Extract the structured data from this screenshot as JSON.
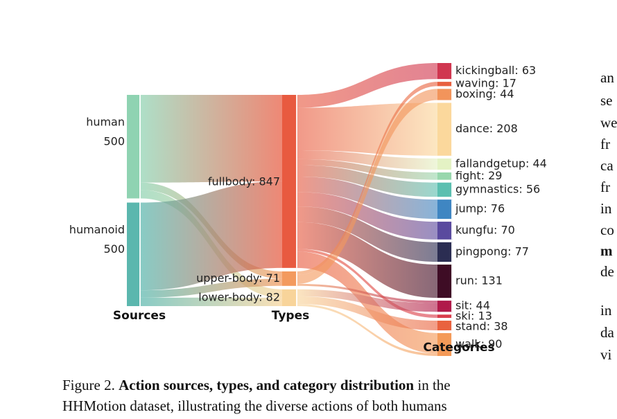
{
  "chart_data": {
    "type": "sankey",
    "column_labels": [
      "Sources",
      "Types",
      "Categories"
    ],
    "sources": [
      {
        "name": "human",
        "value": 500,
        "color": "#8fd3b2"
      },
      {
        "name": "humanoid",
        "value": 500,
        "color": "#5bb7ae"
      }
    ],
    "types": [
      {
        "name": "fullbody",
        "value": 847,
        "color": "#e85a40",
        "label": "fullbody: 847"
      },
      {
        "name": "upper-body",
        "value": 71,
        "color": "#f39a5e",
        "label": "upper-body: 71"
      },
      {
        "name": "lower-body",
        "value": 82,
        "color": "#f8d49a",
        "label": "lower-body: 82"
      }
    ],
    "categories": [
      {
        "name": "kickingball",
        "value": 63,
        "color": "#d03650",
        "label": "kickingball: 63"
      },
      {
        "name": "waving",
        "value": 17,
        "color": "#e8603f",
        "label": "waving: 17"
      },
      {
        "name": "boxing",
        "value": 44,
        "color": "#f2945b",
        "label": "boxing: 44"
      },
      {
        "name": "dance",
        "value": 208,
        "color": "#fbd89c",
        "label": "dance: 208"
      },
      {
        "name": "fallandgetup",
        "value": 44,
        "color": "#e4f2c4",
        "label": "fallandgetup: 44"
      },
      {
        "name": "fight",
        "value": 29,
        "color": "#98d7ad",
        "label": "fight: 29"
      },
      {
        "name": "gymnastics",
        "value": 56,
        "color": "#5bbfb0",
        "label": "gymnastics: 56"
      },
      {
        "name": "jump",
        "value": 76,
        "color": "#3f86c2",
        "label": "jump: 76"
      },
      {
        "name": "kungfu",
        "value": 70,
        "color": "#5a4a9e",
        "label": "kungfu: 70"
      },
      {
        "name": "pingpong",
        "value": 77,
        "color": "#2b2d52",
        "label": "pingpong: 77"
      },
      {
        "name": "run",
        "value": 131,
        "color": "#3e0c25",
        "label": "run: 131"
      },
      {
        "name": "sit",
        "value": 44,
        "color": "#b01a4a",
        "label": "sit: 44"
      },
      {
        "name": "ski",
        "value": 13,
        "color": "#d93d4c",
        "label": "ski: 13"
      },
      {
        "name": "stand",
        "value": 38,
        "color": "#e9623f",
        "label": "stand: 38"
      },
      {
        "name": "walk",
        "value": 90,
        "color": "#f49a58",
        "label": "walk: 90"
      }
    ],
    "flows_type_to_category": [
      {
        "type": "fullbody",
        "category": "kickingball",
        "value": 63
      },
      {
        "type": "fullbody",
        "category": "dance",
        "value": 208
      },
      {
        "type": "fullbody",
        "category": "fallandgetup",
        "value": 44
      },
      {
        "type": "fullbody",
        "category": "fight",
        "value": 29
      },
      {
        "type": "fullbody",
        "category": "gymnastics",
        "value": 56
      },
      {
        "type": "fullbody",
        "category": "jump",
        "value": 76
      },
      {
        "type": "fullbody",
        "category": "kungfu",
        "value": 70
      },
      {
        "type": "fullbody",
        "category": "pingpong",
        "value": 77
      },
      {
        "type": "fullbody",
        "category": "run",
        "value": 131
      },
      {
        "type": "fullbody",
        "category": "ski",
        "value": 13
      },
      {
        "type": "fullbody",
        "category": "walk",
        "value": 80
      },
      {
        "type": "upper-body",
        "category": "waving",
        "value": 17
      },
      {
        "type": "upper-body",
        "category": "boxing",
        "value": 44
      },
      {
        "type": "upper-body",
        "category": "sit",
        "value": 10
      },
      {
        "type": "lower-body",
        "category": "sit",
        "value": 34
      },
      {
        "type": "lower-body",
        "category": "stand",
        "value": 38
      },
      {
        "type": "lower-body",
        "category": "walk",
        "value": 10
      }
    ]
  },
  "caption": {
    "prefix": "Figure 2. ",
    "bold": "Action sources, types, and category distribution",
    "rest_line1": " in the",
    "line2": "HHMotion dataset, illustrating the diverse actions of both humans"
  },
  "right_column_fragments": [
    "an",
    "se",
    "we",
    "fr",
    "ca",
    "fr",
    "in",
    "co",
    "m",
    "de",
    "in",
    "da",
    "vi"
  ]
}
